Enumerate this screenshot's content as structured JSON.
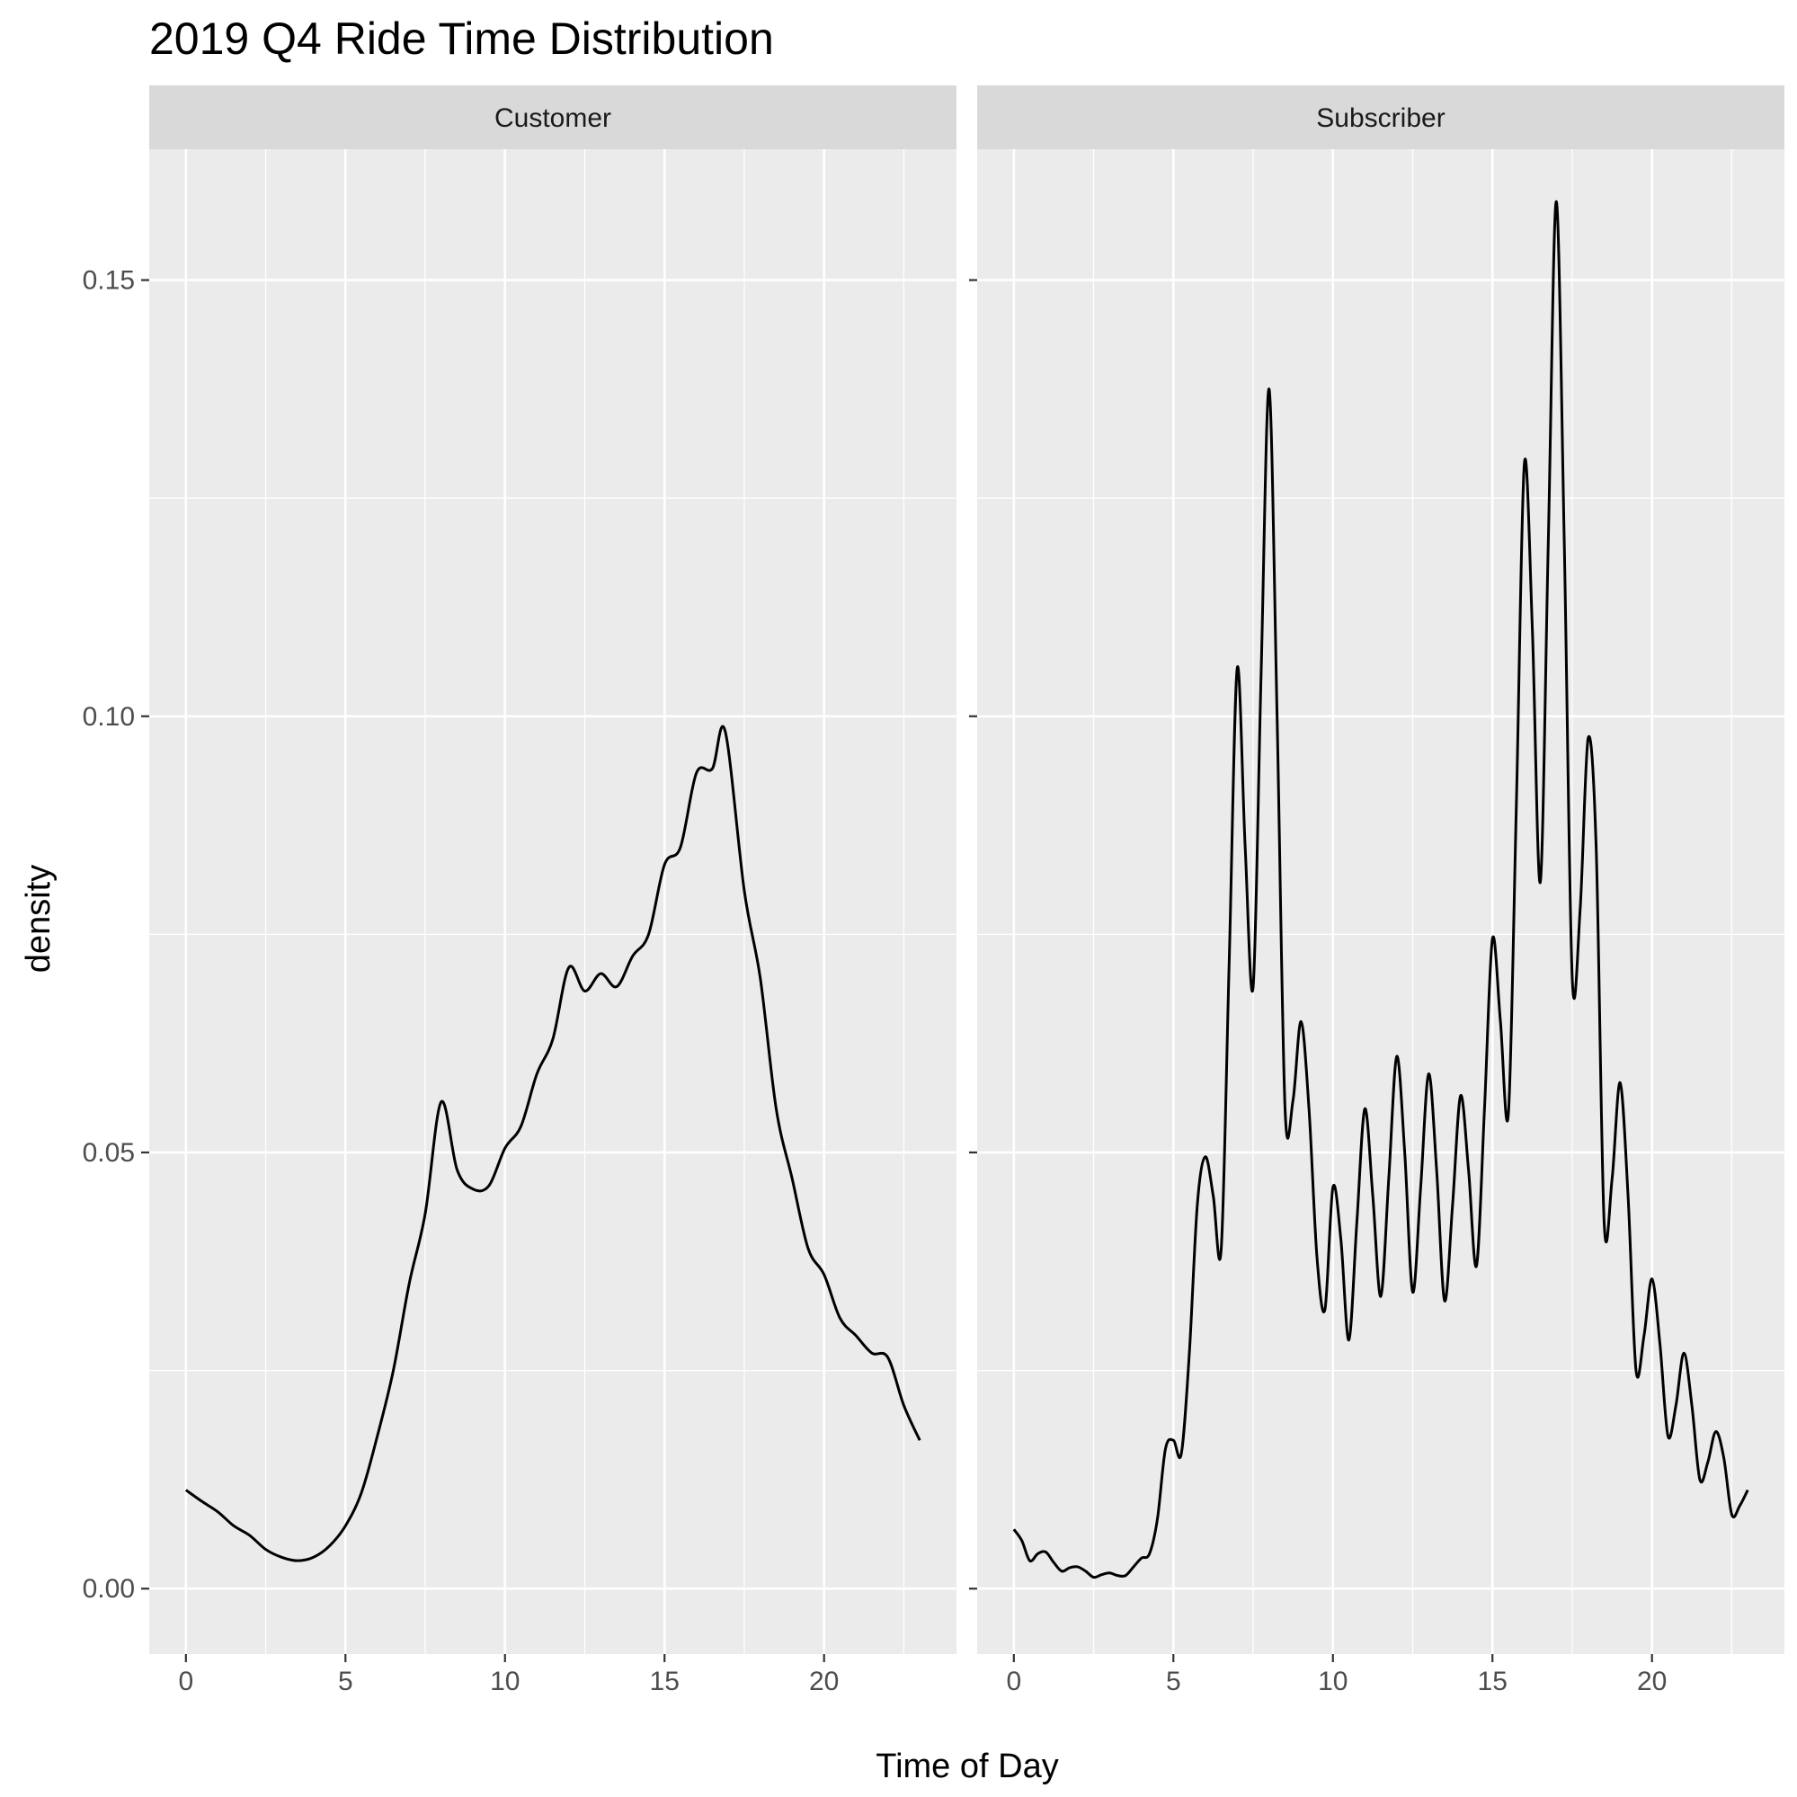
{
  "chart_data": {
    "type": "line",
    "title": "2019 Q4 Ride Time Distribution",
    "xlabel": "Time of Day",
    "ylabel": "density",
    "xlim": [
      -1.15,
      24.15
    ],
    "ylim": [
      -0.0075,
      0.165
    ],
    "x_ticks": [
      0,
      5,
      10,
      15,
      20
    ],
    "x_tick_labels": [
      "0",
      "5",
      "10",
      "15",
      "20"
    ],
    "y_ticks": [
      0,
      0.05,
      0.1,
      0.15
    ],
    "y_tick_labels": [
      "0.00",
      "0.05",
      "0.10",
      "0.15"
    ],
    "grid": true,
    "facets": [
      {
        "strip": "Customer",
        "points": [
          [
            0,
            0.0113
          ],
          [
            0.5,
            0.01
          ],
          [
            1,
            0.0088
          ],
          [
            1.5,
            0.0072
          ],
          [
            2,
            0.0061
          ],
          [
            2.5,
            0.0045
          ],
          [
            3,
            0.0036
          ],
          [
            3.5,
            0.0032
          ],
          [
            4,
            0.0036
          ],
          [
            4.5,
            0.0049
          ],
          [
            5,
            0.0072
          ],
          [
            5.5,
            0.011
          ],
          [
            6,
            0.0175
          ],
          [
            6.5,
            0.025
          ],
          [
            7,
            0.035
          ],
          [
            7.5,
            0.043
          ],
          [
            8,
            0.0558
          ],
          [
            8.5,
            0.048
          ],
          [
            9,
            0.0458
          ],
          [
            9.5,
            0.0462
          ],
          [
            10,
            0.0505
          ],
          [
            10.5,
            0.053
          ],
          [
            11,
            0.059
          ],
          [
            11.5,
            0.063
          ],
          [
            12,
            0.0712
          ],
          [
            12.5,
            0.0685
          ],
          [
            13,
            0.0705
          ],
          [
            13.5,
            0.069
          ],
          [
            14,
            0.0725
          ],
          [
            14.5,
            0.075
          ],
          [
            15,
            0.083
          ],
          [
            15.5,
            0.085
          ],
          [
            16,
            0.0935
          ],
          [
            16.5,
            0.094
          ],
          [
            16.9,
            0.0983
          ],
          [
            17.5,
            0.08
          ],
          [
            18,
            0.07
          ],
          [
            18.5,
            0.055
          ],
          [
            19,
            0.047
          ],
          [
            19.5,
            0.039
          ],
          [
            20,
            0.036
          ],
          [
            20.5,
            0.031
          ],
          [
            21,
            0.029
          ],
          [
            21.5,
            0.027
          ],
          [
            22,
            0.0265
          ],
          [
            22.5,
            0.021
          ],
          [
            23,
            0.017
          ]
        ]
      },
      {
        "strip": "Subscriber",
        "points": [
          [
            0,
            0.0068
          ],
          [
            0.25,
            0.0055
          ],
          [
            0.5,
            0.0032
          ],
          [
            0.75,
            0.004
          ],
          [
            1,
            0.0042
          ],
          [
            1.25,
            0.003
          ],
          [
            1.5,
            0.002
          ],
          [
            1.75,
            0.0024
          ],
          [
            2,
            0.0025
          ],
          [
            2.25,
            0.002
          ],
          [
            2.5,
            0.0013
          ],
          [
            2.75,
            0.0016
          ],
          [
            3,
            0.0018
          ],
          [
            3.25,
            0.0015
          ],
          [
            3.5,
            0.0015
          ],
          [
            3.75,
            0.0025
          ],
          [
            4,
            0.0035
          ],
          [
            4.25,
            0.004
          ],
          [
            4.5,
            0.008
          ],
          [
            4.75,
            0.016
          ],
          [
            5,
            0.017
          ],
          [
            5.25,
            0.0155
          ],
          [
            5.5,
            0.027
          ],
          [
            5.75,
            0.044
          ],
          [
            6,
            0.0495
          ],
          [
            6.25,
            0.045
          ],
          [
            6.5,
            0.039
          ],
          [
            6.75,
            0.072
          ],
          [
            7,
            0.1055
          ],
          [
            7.25,
            0.085
          ],
          [
            7.5,
            0.069
          ],
          [
            7.75,
            0.105
          ],
          [
            8,
            0.1375
          ],
          [
            8.25,
            0.1
          ],
          [
            8.5,
            0.055
          ],
          [
            8.75,
            0.056
          ],
          [
            9,
            0.065
          ],
          [
            9.25,
            0.055
          ],
          [
            9.5,
            0.038
          ],
          [
            9.75,
            0.032
          ],
          [
            10,
            0.046
          ],
          [
            10.25,
            0.04
          ],
          [
            10.5,
            0.0285
          ],
          [
            10.75,
            0.042
          ],
          [
            11,
            0.055
          ],
          [
            11.25,
            0.045
          ],
          [
            11.5,
            0.0335
          ],
          [
            11.75,
            0.047
          ],
          [
            12,
            0.061
          ],
          [
            12.25,
            0.05
          ],
          [
            12.5,
            0.034
          ],
          [
            12.75,
            0.046
          ],
          [
            13,
            0.059
          ],
          [
            13.25,
            0.048
          ],
          [
            13.5,
            0.033
          ],
          [
            13.75,
            0.044
          ],
          [
            14,
            0.0565
          ],
          [
            14.25,
            0.048
          ],
          [
            14.5,
            0.037
          ],
          [
            14.75,
            0.055
          ],
          [
            15,
            0.0745
          ],
          [
            15.25,
            0.065
          ],
          [
            15.5,
            0.0545
          ],
          [
            15.75,
            0.09
          ],
          [
            16,
            0.129
          ],
          [
            16.25,
            0.11
          ],
          [
            16.5,
            0.081
          ],
          [
            16.75,
            0.12
          ],
          [
            17,
            0.159
          ],
          [
            17.25,
            0.12
          ],
          [
            17.5,
            0.07
          ],
          [
            17.75,
            0.078
          ],
          [
            18,
            0.0975
          ],
          [
            18.25,
            0.085
          ],
          [
            18.5,
            0.042
          ],
          [
            18.75,
            0.047
          ],
          [
            19,
            0.058
          ],
          [
            19.25,
            0.045
          ],
          [
            19.5,
            0.025
          ],
          [
            19.75,
            0.029
          ],
          [
            20,
            0.0355
          ],
          [
            20.25,
            0.028
          ],
          [
            20.5,
            0.0175
          ],
          [
            20.75,
            0.021
          ],
          [
            21,
            0.027
          ],
          [
            21.25,
            0.021
          ],
          [
            21.5,
            0.0125
          ],
          [
            21.75,
            0.0145
          ],
          [
            22,
            0.018
          ],
          [
            22.25,
            0.015
          ],
          [
            22.5,
            0.0085
          ],
          [
            22.75,
            0.0095
          ],
          [
            23,
            0.0113
          ]
        ]
      }
    ]
  }
}
